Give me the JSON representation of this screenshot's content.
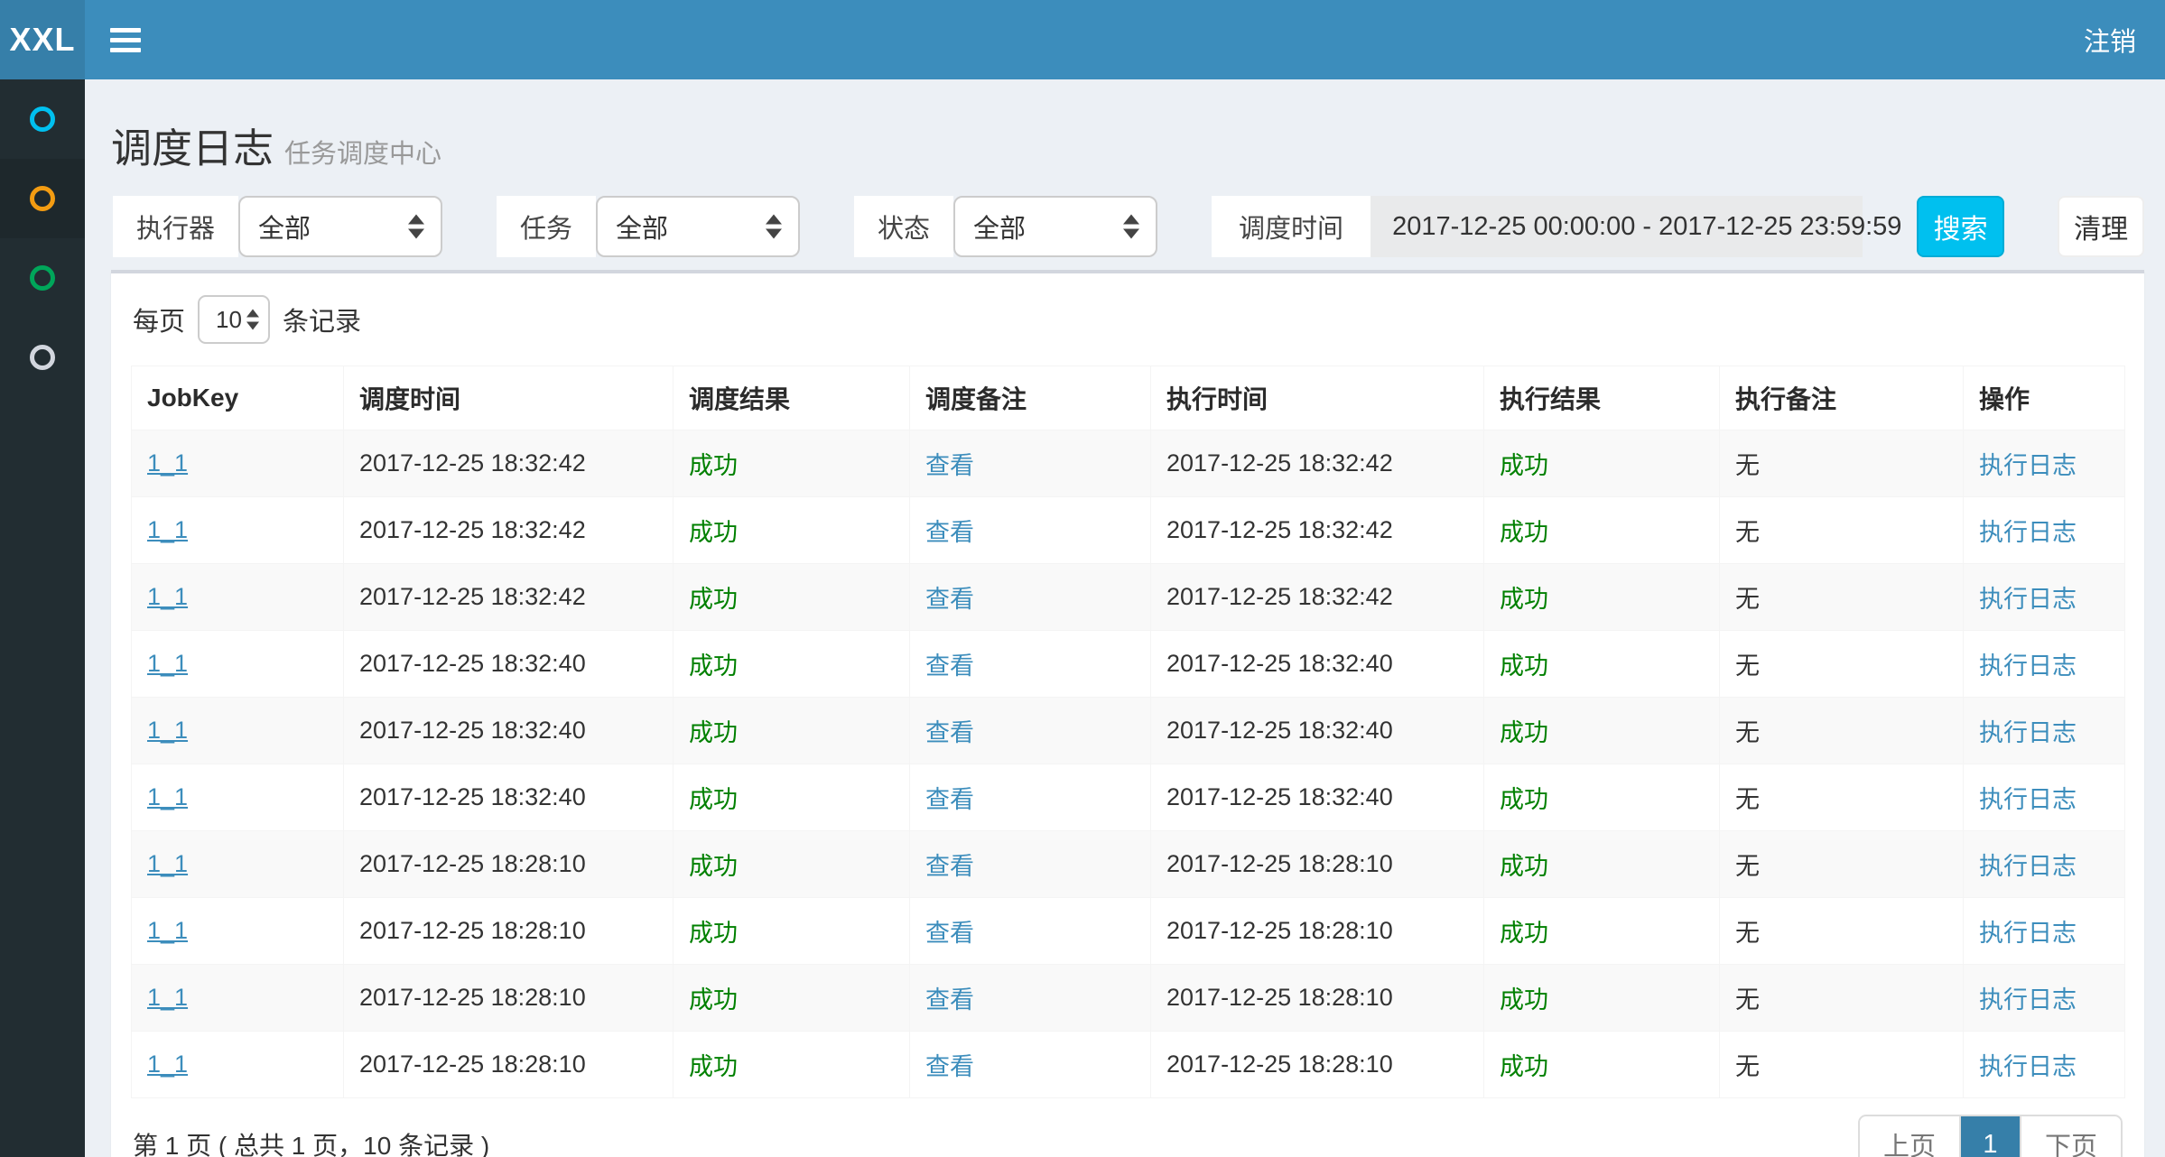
{
  "navbar": {
    "logo_text": "XXL",
    "logout_label": "注销"
  },
  "sidebar": {
    "items": [
      {
        "name": "nav-item-1",
        "icon": "circle-icon",
        "color": "#00c0ef",
        "active": false
      },
      {
        "name": "nav-item-2",
        "icon": "circle-icon",
        "color": "#f39c12",
        "active": true
      },
      {
        "name": "nav-item-3",
        "icon": "circle-icon",
        "color": "#00a65a",
        "active": false
      },
      {
        "name": "nav-item-4",
        "icon": "circle-icon",
        "color": "#d2d6de",
        "active": false
      }
    ]
  },
  "page": {
    "title": "调度日志",
    "subtitle": "任务调度中心"
  },
  "filters": {
    "executor": {
      "label": "执行器",
      "value": "全部"
    },
    "job": {
      "label": "任务",
      "value": "全部"
    },
    "status": {
      "label": "状态",
      "value": "全部"
    },
    "time": {
      "label": "调度时间",
      "value": "2017-12-25 00:00:00 - 2017-12-25 23:59:59"
    },
    "search_label": "搜索",
    "clean_label": "清理"
  },
  "page_size": {
    "prefix": "每页",
    "value": "10",
    "suffix": "条记录"
  },
  "table": {
    "columns": [
      "JobKey",
      "调度时间",
      "调度结果",
      "调度备注",
      "执行时间",
      "执行结果",
      "执行备注",
      "操作"
    ],
    "rows": [
      {
        "job_key": "1_1",
        "sched_time": "2017-12-25 18:32:42",
        "sched_result": "成功",
        "sched_remark": "查看",
        "exec_time": "2017-12-25 18:32:42",
        "exec_result": "成功",
        "exec_remark": "无",
        "action": "执行日志"
      },
      {
        "job_key": "1_1",
        "sched_time": "2017-12-25 18:32:42",
        "sched_result": "成功",
        "sched_remark": "查看",
        "exec_time": "2017-12-25 18:32:42",
        "exec_result": "成功",
        "exec_remark": "无",
        "action": "执行日志"
      },
      {
        "job_key": "1_1",
        "sched_time": "2017-12-25 18:32:42",
        "sched_result": "成功",
        "sched_remark": "查看",
        "exec_time": "2017-12-25 18:32:42",
        "exec_result": "成功",
        "exec_remark": "无",
        "action": "执行日志"
      },
      {
        "job_key": "1_1",
        "sched_time": "2017-12-25 18:32:40",
        "sched_result": "成功",
        "sched_remark": "查看",
        "exec_time": "2017-12-25 18:32:40",
        "exec_result": "成功",
        "exec_remark": "无",
        "action": "执行日志"
      },
      {
        "job_key": "1_1",
        "sched_time": "2017-12-25 18:32:40",
        "sched_result": "成功",
        "sched_remark": "查看",
        "exec_time": "2017-12-25 18:32:40",
        "exec_result": "成功",
        "exec_remark": "无",
        "action": "执行日志"
      },
      {
        "job_key": "1_1",
        "sched_time": "2017-12-25 18:32:40",
        "sched_result": "成功",
        "sched_remark": "查看",
        "exec_time": "2017-12-25 18:32:40",
        "exec_result": "成功",
        "exec_remark": "无",
        "action": "执行日志"
      },
      {
        "job_key": "1_1",
        "sched_time": "2017-12-25 18:28:10",
        "sched_result": "成功",
        "sched_remark": "查看",
        "exec_time": "2017-12-25 18:28:10",
        "exec_result": "成功",
        "exec_remark": "无",
        "action": "执行日志"
      },
      {
        "job_key": "1_1",
        "sched_time": "2017-12-25 18:28:10",
        "sched_result": "成功",
        "sched_remark": "查看",
        "exec_time": "2017-12-25 18:28:10",
        "exec_result": "成功",
        "exec_remark": "无",
        "action": "执行日志"
      },
      {
        "job_key": "1_1",
        "sched_time": "2017-12-25 18:28:10",
        "sched_result": "成功",
        "sched_remark": "查看",
        "exec_time": "2017-12-25 18:28:10",
        "exec_result": "成功",
        "exec_remark": "无",
        "action": "执行日志"
      },
      {
        "job_key": "1_1",
        "sched_time": "2017-12-25 18:28:10",
        "sched_result": "成功",
        "sched_remark": "查看",
        "exec_time": "2017-12-25 18:28:10",
        "exec_result": "成功",
        "exec_remark": "无",
        "action": "执行日志"
      }
    ]
  },
  "footer": {
    "summary": "第 1 页 ( 总共 1 页，10 条记录 )",
    "pagination": {
      "prev": "上页",
      "current": "1",
      "next": "下页"
    }
  },
  "colors": {
    "navbar": "#3c8dbc",
    "logo_bg": "#367fa9",
    "sidebar_bg": "#222d32",
    "sidebar_active_bg": "#1e282c",
    "page_bg": "#ecf0f5",
    "box_top_border": "#d2d6de",
    "link": "#3c8dbc",
    "success_text": "green",
    "search_button": "#00c0ef",
    "pagination_active": "#367fa9",
    "stripe": "#f9f9f9"
  }
}
